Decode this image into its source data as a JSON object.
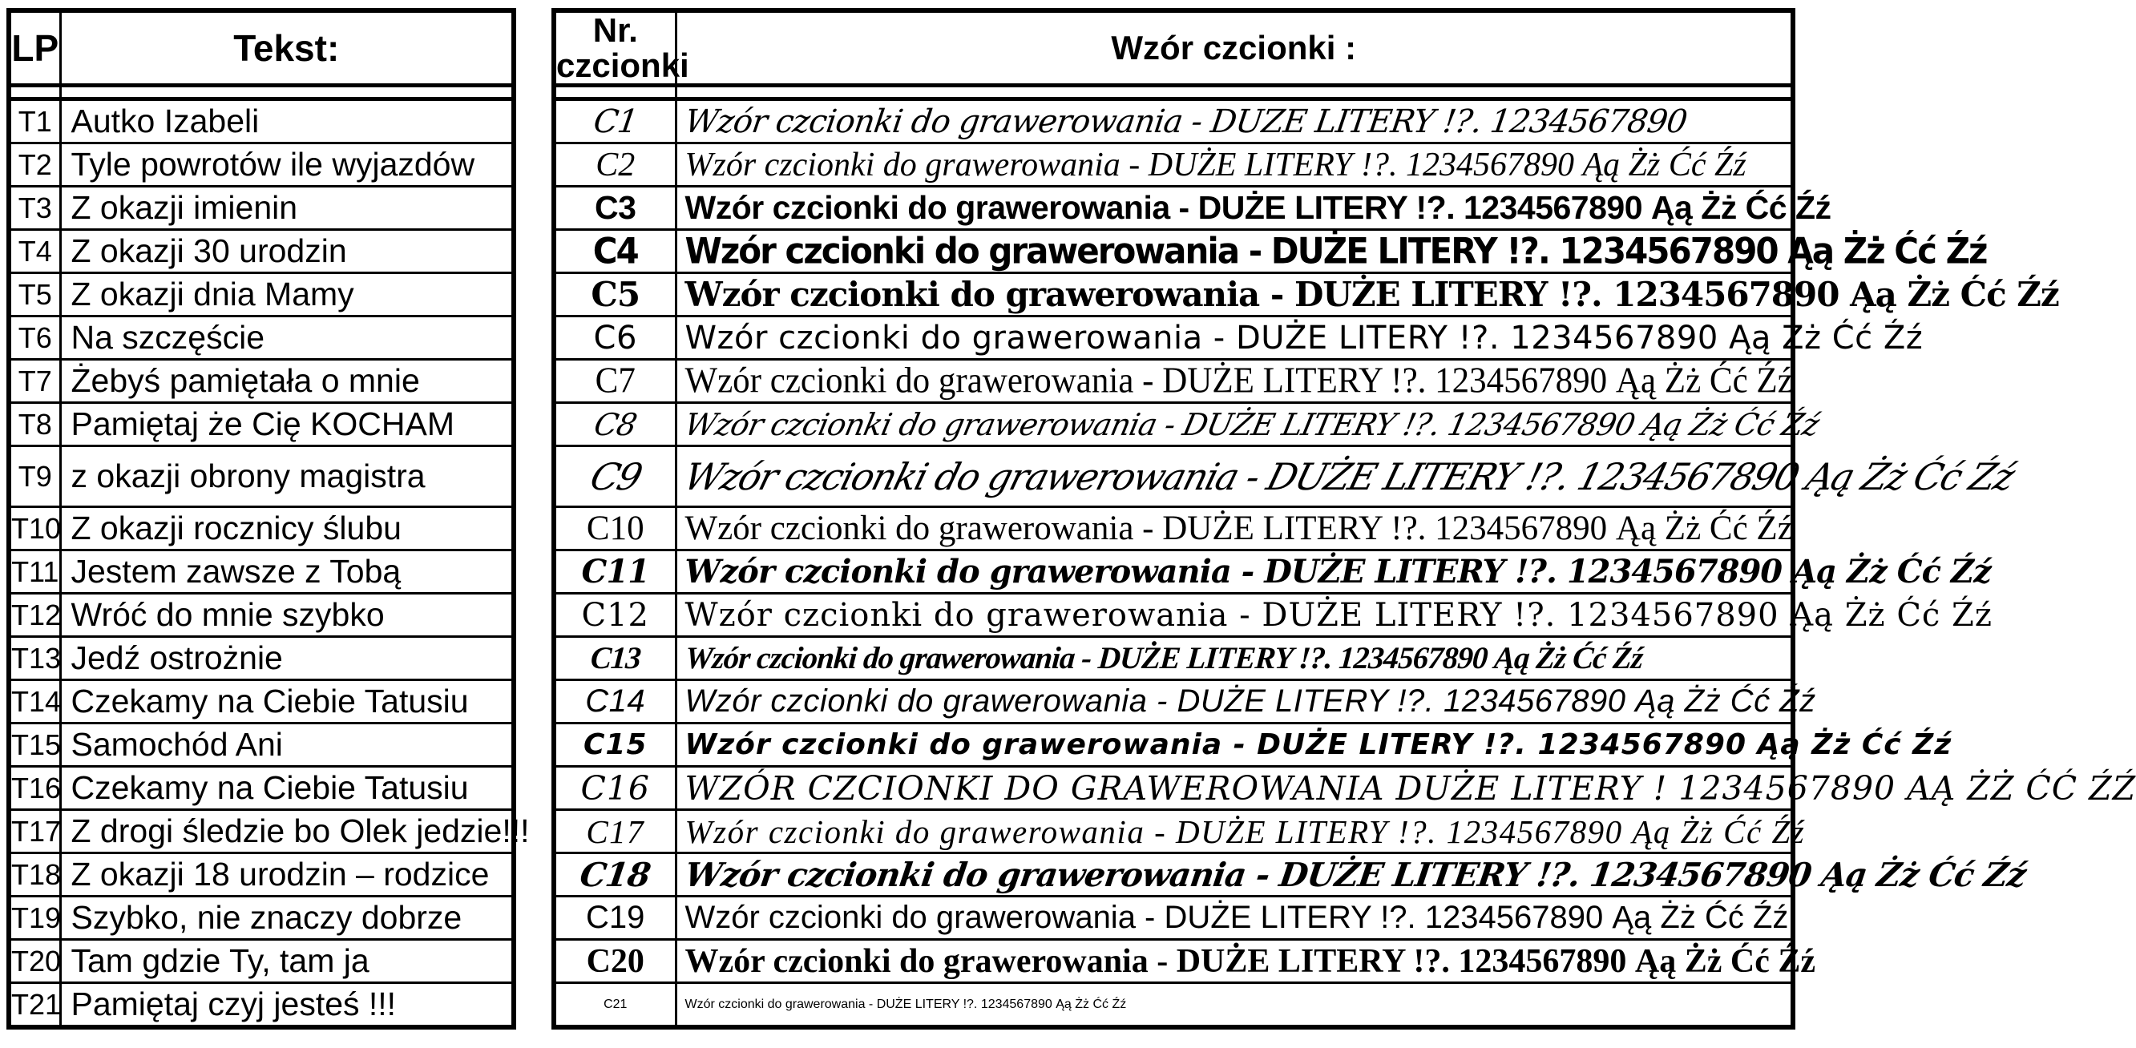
{
  "left_table": {
    "header": {
      "lp": "LP",
      "tekst": "Tekst:"
    },
    "rows": [
      {
        "id": "T1",
        "text": "Autko Izabeli"
      },
      {
        "id": "T2",
        "text": "Tyle powrotów ile wyjazdów"
      },
      {
        "id": "T3",
        "text": "Z okazji imienin"
      },
      {
        "id": "T4",
        "text": "Z okazji 30 urodzin"
      },
      {
        "id": "T5",
        "text": "Z okazji dnia Mamy"
      },
      {
        "id": "T6",
        "text": "Na szczęście"
      },
      {
        "id": "T7",
        "text": "Żebyś pamiętała o mnie"
      },
      {
        "id": "T8",
        "text": "Pamiętaj że Cię KOCHAM"
      },
      {
        "id": "T9",
        "text": "z okazji obrony magistra"
      },
      {
        "id": "T10",
        "text": "Z okazji rocznicy ślubu"
      },
      {
        "id": "T11",
        "text": "Jestem zawsze z Tobą"
      },
      {
        "id": "T12",
        "text": "Wróć do mnie szybko"
      },
      {
        "id": "T13",
        "text": "Jedź ostrożnie"
      },
      {
        "id": "T14",
        "text": "Czekamy na Ciebie Tatusiu"
      },
      {
        "id": "T15",
        "text": "Samochód Ani"
      },
      {
        "id": "T16",
        "text": "Czekamy na Ciebie Tatusiu"
      },
      {
        "id": "T17",
        "text": "Z drogi śledzie bo Olek jedzie!!!"
      },
      {
        "id": "T18",
        "text": "Z okazji 18 urodzin – rodzice"
      },
      {
        "id": "T19",
        "text": "Szybko, nie znaczy dobrze"
      },
      {
        "id": "T20",
        "text": "Tam gdzie Ty, tam ja"
      },
      {
        "id": "T21",
        "text": "Pamiętaj czyj jesteś !!!"
      }
    ]
  },
  "right_table": {
    "header": {
      "nr_line1": "Nr.",
      "nr_line2": "czcionki",
      "wzor": "Wzór czcionki :"
    },
    "rows": [
      {
        "id": "C1",
        "style": "outline-comic",
        "sample": "Wzór czcionki do grawerowania  - DUZE LITERY !?.  1234567890"
      },
      {
        "id": "C2",
        "style": "brush-script-italic",
        "sample": "Wzór czcionki do grawerowania  - DUŻE LITERY !?.  1234567890 Ąą Żż Ćć Źź"
      },
      {
        "id": "C3",
        "style": "chancery-italic-serif",
        "sample": "Wzór czcionki do grawerowania  - DUŻE LITERY !?.  1234567890 Ąą Żż Ćć Źź"
      },
      {
        "id": "C4",
        "style": "bold-sans",
        "sample": "Wzór czcionki do grawerowania  - DUŻE LITERY !?.  1234567890 Ąą Żż Ćć Źź"
      },
      {
        "id": "C5",
        "style": "heavy-display",
        "sample": "Wzór czcionki do grawerowania  - DUŻE LITERY !?.  1234567890 Ąą Żż Ćć Źź"
      },
      {
        "id": "C6",
        "style": "bold-serif-display",
        "sample": "Wzór czcionki do grawerowania  - DUŻE LITERY !?.  1234567890 Ąą Żż Ćć Źź"
      },
      {
        "id": "C7",
        "style": "comic-rounded-sans",
        "sample": "Wzór czcionki do grawerowania  - DUŻE LITERY !?.  1234567890 Ąą Żż Ćć Źź"
      },
      {
        "id": "C8",
        "style": "condensed-serif",
        "sample": "Wzór czcionki do grawerowania  - DUŻE LITERY !?.  1234567890 Ąą Żż Ćć Źź"
      },
      {
        "id": "C9",
        "style": "formal-script",
        "sample": "Wzór czcionki do grawerowania  - DUŻE LITERY !?.  1234567890 Ąą Żż Ćć Źź"
      },
      {
        "id": "C10",
        "style": "calligraphic-script-large",
        "sample": "Wzór czcionki do grawerowania  - DUŻE LITERY !?.  1234567890 Ąą Żż Ćć Źź"
      },
      {
        "id": "C11",
        "style": "plain-serif",
        "sample": "Wzór czcionki do grawerowania  - DUŻE LITERY !?.  1234567890 Ąą Żż Ćć Źź"
      },
      {
        "id": "C12",
        "style": "bold-italic-script-serif",
        "sample": "Wzór czcionki do grawerowania  - DUŻE LITERY !?.  1234567890 Ąą Żż Ćć Źź"
      },
      {
        "id": "C13",
        "style": "decorative-artnouveau-serif",
        "sample": "Wzór czcionki do grawerowania  - DUŻE LITERY !?.  1234567890 Ąą Żż Ćć Źź"
      },
      {
        "id": "C14",
        "style": "bold-condensed-brush-italic",
        "sample": "Wzór czcionki do grawerowania  - DUŻE LITERY !?.  1234567890 Ąą Żż Ćć Źź"
      },
      {
        "id": "C15",
        "style": "casual-handwriting",
        "sample": "Wzór czcionki do grawerowania  - DUŻE LITERY !?.  1234567890 Ąą Żż Ćć Źź"
      },
      {
        "id": "C16",
        "style": "marker-brush-caps",
        "sample": "WZÓR CZCIONKI DO GRAWEROWANIA   DUŻE LITERY !  1234567890 AĄ ŻŻ ĆĆ ŹŹ"
      },
      {
        "id": "C17",
        "style": "fantasy-angular-script",
        "sample": "Wzór czcionki do grawerowania  - DUŻE LITERY !?.  1234567890 Ąą Żż Ćć Źź"
      },
      {
        "id": "C18",
        "style": "italic-humanist-serif",
        "sample": "Wzór czcionki do grawerowania  - DUŻE LITERY !?.  1234567890 Ąą Żż Ćć Źź"
      },
      {
        "id": "C19",
        "style": "bold-brush-script",
        "sample": "Wzór czcionki do grawerowania  - DUŻE LITERY !?.  1234567890 Ąą Żż Ćć Źź"
      },
      {
        "id": "C20",
        "style": "plain-sans",
        "sample": "Wzór czcionki do grawerowania  - DUŻE LITERY !?.  1234567890 Ąą Żż Ćć Źź"
      },
      {
        "id": "C21",
        "style": "bold-serif",
        "sample": "Wzór czcionki do grawerowania  - DUŻE LITERY !?.  1234567890 Ąą Żż Ćć Źź"
      }
    ]
  }
}
